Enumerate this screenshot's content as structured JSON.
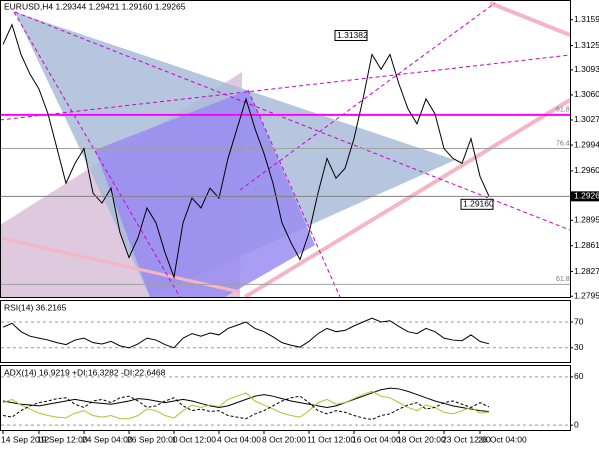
{
  "chart_data": [
    {
      "type": "line",
      "title": "EURUSD,H4  1.29344 1.29421 1.29160 1.29265",
      "color": "#000000",
      "categories": [
        "14 Sep 2012",
        null,
        null,
        null,
        "19 Sep 12:00",
        null,
        null,
        null,
        null,
        "24 Sep 04:00",
        null,
        null,
        null,
        null,
        "26 Sep 20:00",
        null,
        null,
        null,
        null,
        "1 Oct 12:00",
        null,
        null,
        null,
        null,
        "4 Oct 04:00",
        null,
        null,
        null,
        null,
        "8 Oct 20:00",
        null,
        null,
        null,
        null,
        "11 Oct 12:00",
        null,
        null,
        null,
        null,
        "16 Oct 04:00",
        null,
        null,
        null,
        null,
        "18 Oct 20:00",
        null,
        null,
        null,
        null,
        "23 Oct 12:00",
        null,
        null,
        null,
        "26 Oct 04:00",
        null
      ],
      "values": [
        1.31264,
        1.31525,
        1.31133,
        1.30873,
        1.30677,
        1.30351,
        1.29894,
        1.29438,
        1.29699,
        1.29894,
        1.29307,
        1.29177,
        1.29373,
        1.28786,
        1.2846,
        1.2872,
        1.29112,
        1.28916,
        1.28525,
        1.28199,
        1.28916,
        1.29242,
        1.29112,
        1.29373,
        1.29242,
        1.29764,
        1.30155,
        1.30547,
        1.30155,
        1.29829,
        1.29438,
        1.28916,
        1.28655,
        1.28433,
        1.28786,
        1.29307,
        1.29764,
        1.29503,
        1.29633,
        1.30025,
        1.30547,
        1.31133,
        1.30938,
        1.31133,
        1.30742,
        1.30416,
        1.3022,
        1.30547,
        1.30351,
        1.29894,
        1.29764,
        1.29699,
        1.30025,
        1.29529,
        1.29265
      ],
      "ylim": [
        1.2794,
        1.3181
      ],
      "yticks": [
        {
          "value": 1.3159,
          "label": "1.31590"
        },
        {
          "value": 1.3125,
          "label": "1.31250"
        },
        {
          "value": 1.3093,
          "label": "1.30930"
        },
        {
          "value": 1.306,
          "label": "1.30600"
        },
        {
          "value": 1.3027,
          "label": "1.30270"
        },
        {
          "value": 1.2994,
          "label": "1.29940"
        },
        {
          "value": 1.296,
          "label": "1.29600"
        },
        {
          "value": 1.2895,
          "label": "1.28950"
        },
        {
          "value": 1.28615,
          "label": "1.28615"
        },
        {
          "value": 1.28275,
          "label": "1.28275"
        },
        {
          "value": 1.2795,
          "label": "1.27950"
        }
      ],
      "last_price": {
        "value": 1.29265,
        "label": "1.29265"
      },
      "levels": [
        {
          "value": 1.30338,
          "label": "61.8",
          "color": "#ff00ff"
        },
        {
          "value": 1.29894,
          "label": "76.4",
          "color": "#a0a0a0"
        },
        {
          "value": 1.28107,
          "label": "61.8",
          "color": "#a0a0a0"
        }
      ],
      "annotations": [
        {
          "value": 1.31382,
          "label": "1.31382",
          "index": 40
        },
        {
          "value": 1.2916,
          "label": "1.29160",
          "index": 54
        }
      ]
    },
    {
      "type": "line",
      "title": "RSI(14) 36.2165",
      "color": "#000000",
      "values": [
        62,
        68,
        55,
        48,
        45,
        42,
        38,
        35,
        42,
        45,
        38,
        36,
        40,
        33,
        30,
        36,
        45,
        42,
        35,
        30,
        45,
        52,
        48,
        53,
        50,
        60,
        65,
        70,
        60,
        55,
        47,
        38,
        34,
        31,
        40,
        52,
        60,
        55,
        57,
        64,
        70,
        76,
        70,
        72,
        63,
        55,
        52,
        60,
        55,
        45,
        42,
        41,
        50,
        40,
        36.2165
      ],
      "ylim": [
        8,
        101
      ],
      "yticks": [
        70,
        30
      ]
    },
    {
      "type": "line",
      "title": "ADX(14) 16.9219 +DI:16.3282 -DI:22.6468",
      "series": [
        {
          "color": "#000000",
          "dash": false,
          "values": [
            30,
            28,
            26,
            25,
            24,
            26,
            28,
            30,
            32,
            30,
            28,
            27,
            26,
            28,
            30,
            33,
            32,
            30,
            28,
            30,
            32,
            30,
            27,
            24,
            22,
            24,
            28,
            32,
            36,
            38,
            36,
            33,
            30,
            28,
            26,
            24,
            22,
            24,
            28,
            32,
            36,
            40,
            44,
            46,
            45,
            42,
            38,
            34,
            30,
            27,
            24,
            22,
            20,
            18,
            16.9219
          ]
        },
        {
          "color": "#9acd32",
          "dash": false,
          "values": [
            28,
            32,
            25,
            20,
            15,
            12,
            10,
            9,
            15,
            18,
            12,
            10,
            12,
            8,
            8,
            12,
            20,
            18,
            12,
            9,
            18,
            25,
            22,
            25,
            23,
            32,
            36,
            40,
            30,
            25,
            20,
            15,
            12,
            10,
            18,
            28,
            32,
            26,
            28,
            33,
            38,
            42,
            36,
            34,
            28,
            22,
            18,
            25,
            22,
            16,
            14,
            18,
            22,
            15,
            16.3282
          ]
        },
        {
          "color": "#000000",
          "dash": true,
          "values": [
            12,
            10,
            18,
            24,
            28,
            30,
            33,
            34,
            26,
            22,
            30,
            32,
            28,
            34,
            36,
            30,
            22,
            24,
            30,
            34,
            24,
            18,
            20,
            17,
            18,
            12,
            10,
            8,
            14,
            18,
            24,
            30,
            34,
            36,
            28,
            18,
            14,
            18,
            16,
            12,
            9,
            7,
            12,
            14,
            20,
            25,
            28,
            20,
            22,
            28,
            30,
            26,
            22,
            28,
            22.6468
          ]
        }
      ],
      "ylim": [
        -6,
        71
      ],
      "yticks": [
        60,
        0
      ]
    }
  ]
}
